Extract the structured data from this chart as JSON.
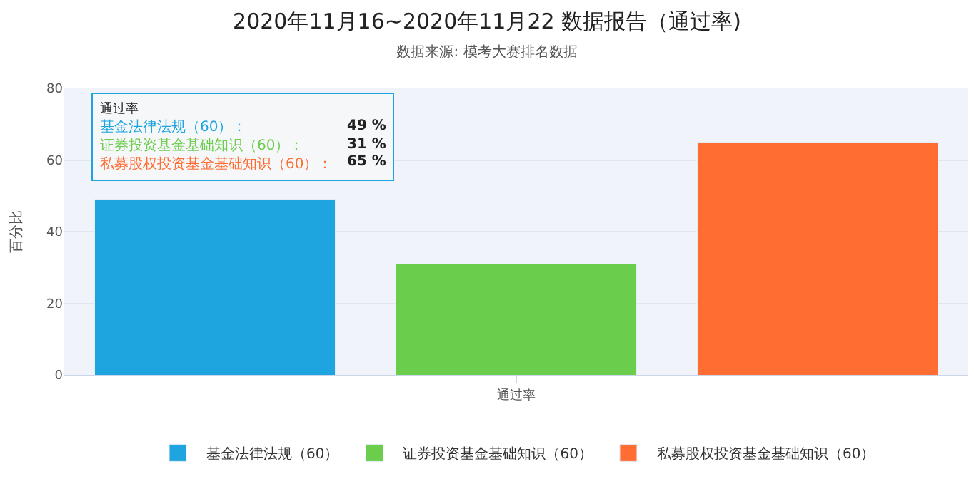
{
  "chart_data": {
    "type": "bar",
    "title": "2020年11月16~2020年11月22 数据报告（通过率)",
    "subtitle": "数据来源: 模考大赛排名数据",
    "ylabel": "百分比",
    "categories": [
      null,
      "通过率",
      null
    ],
    "stacked": true,
    "series": [
      {
        "name": "基金法律法规（60）",
        "color": "#1ea5e0",
        "values": [
          49,
          null,
          null
        ]
      },
      {
        "name": "证券投资基金基础知识（60）",
        "color": "#6acd4b",
        "values": [
          null,
          31,
          null
        ]
      },
      {
        "name": "私募股权投资基金基础知识（60）",
        "color": "#ff6d33",
        "values": [
          null,
          null,
          65
        ]
      }
    ],
    "ylim": [
      0,
      80
    ],
    "yticks": [
      0,
      20,
      40,
      60,
      80
    ],
    "grid": "y",
    "legend": "bottom",
    "annotations": [
      "通过率",
      "基金法律法规（60）：",
      "49 %",
      "证券投资基金基础知识（60）：",
      "31 %",
      "私募股权投资基金基础知识（60）：",
      "65 %"
    ]
  }
}
